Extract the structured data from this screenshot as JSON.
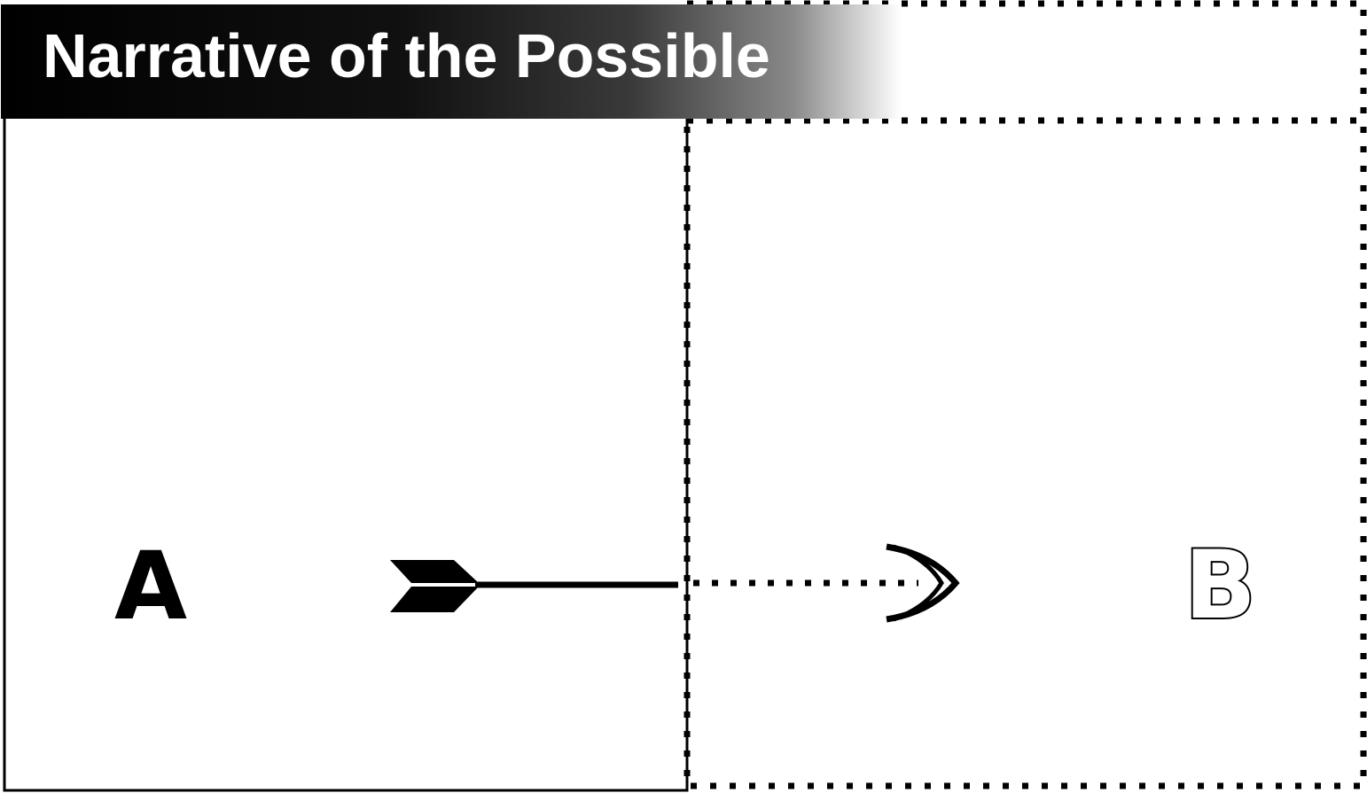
{
  "diagram": {
    "title": "Narrative of the Possible",
    "start_label": "A",
    "end_label": "B",
    "colors": {
      "ink": "#000000",
      "background": "#ffffff",
      "title_text": "#ffffff"
    },
    "icons": {
      "tail": "arrow-fletching-icon",
      "head": "double-chevron-icon"
    }
  }
}
